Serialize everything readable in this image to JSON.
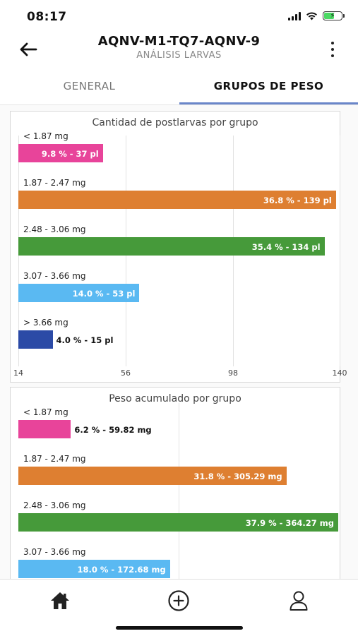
{
  "status_bar": {
    "time": "08:17"
  },
  "header": {
    "title": "AQNV-M1-TQ7-AQNV-9",
    "subtitle": "ANÁLISIS LARVAS"
  },
  "tabs": [
    {
      "label": "GENERAL",
      "active": false
    },
    {
      "label": "GRUPOS DE PESO",
      "active": true
    }
  ],
  "colors": {
    "pink": "#e8449a",
    "orange": "#de7f31",
    "green": "#469a3a",
    "lightblue": "#5ab9f2",
    "darkblue": "#2b4aa6",
    "tab_indicator": "#6a86c9"
  },
  "charts": [
    {
      "title": "Cantidad de postlarvas por grupo",
      "xlim": [
        14,
        140
      ],
      "ticks": [
        "14",
        "56",
        "98",
        "140"
      ],
      "groups": [
        {
          "label": "< 1.87 mg",
          "value": 37,
          "text": "9.8 % - 37 pl",
          "color": "#e8449a"
        },
        {
          "label": "1.87 - 2.47 mg",
          "value": 139,
          "text": "36.8 % - 139 pl",
          "color": "#de7f31"
        },
        {
          "label": "2.48 - 3.06 mg",
          "value": 134,
          "text": "35.4 % - 134 pl",
          "color": "#469a3a"
        },
        {
          "label": "3.07 - 3.66 mg",
          "value": 53,
          "text": "14.0 % - 53 pl",
          "color": "#5ab9f2"
        },
        {
          "label": "> 3.66 mg",
          "value": 15,
          "text": "4.0 % - 15 pl",
          "color": "#2b4aa6"
        }
      ]
    },
    {
      "title": "Peso acumulado por grupo",
      "xlim": [
        0,
        364.27
      ],
      "ticks": [],
      "groups": [
        {
          "label": "< 1.87 mg",
          "value": 59.82,
          "text": "6.2 % - 59.82 mg",
          "color": "#e8449a"
        },
        {
          "label": "1.87 - 2.47 mg",
          "value": 305.29,
          "text": "31.8 % - 305.29 mg",
          "color": "#de7f31"
        },
        {
          "label": "2.48 - 3.06 mg",
          "value": 364.27,
          "text": "37.9 % - 364.27 mg",
          "color": "#469a3a"
        },
        {
          "label": "3.07 - 3.66 mg",
          "value": 172.68,
          "text": "18.0 % - 172.68 mg",
          "color": "#5ab9f2"
        }
      ]
    }
  ],
  "chart_data": [
    {
      "type": "bar",
      "title": "Cantidad de postlarvas por grupo",
      "categories": [
        "< 1.87 mg",
        "1.87 - 2.47 mg",
        "2.48 - 3.06 mg",
        "3.07 - 3.66 mg",
        "> 3.66 mg"
      ],
      "values": [
        37,
        139,
        134,
        53,
        15
      ],
      "xlim": [
        14,
        140
      ],
      "orientation": "horizontal"
    },
    {
      "type": "bar",
      "title": "Peso acumulado por grupo",
      "categories": [
        "< 1.87 mg",
        "1.87 - 2.47 mg",
        "2.48 - 3.06 mg",
        "3.07 - 3.66 mg"
      ],
      "values": [
        59.82,
        305.29,
        364.27,
        172.68
      ],
      "orientation": "horizontal"
    }
  ],
  "bottom_nav": {
    "items": [
      "home-icon",
      "add-circle-icon",
      "user-icon"
    ]
  }
}
